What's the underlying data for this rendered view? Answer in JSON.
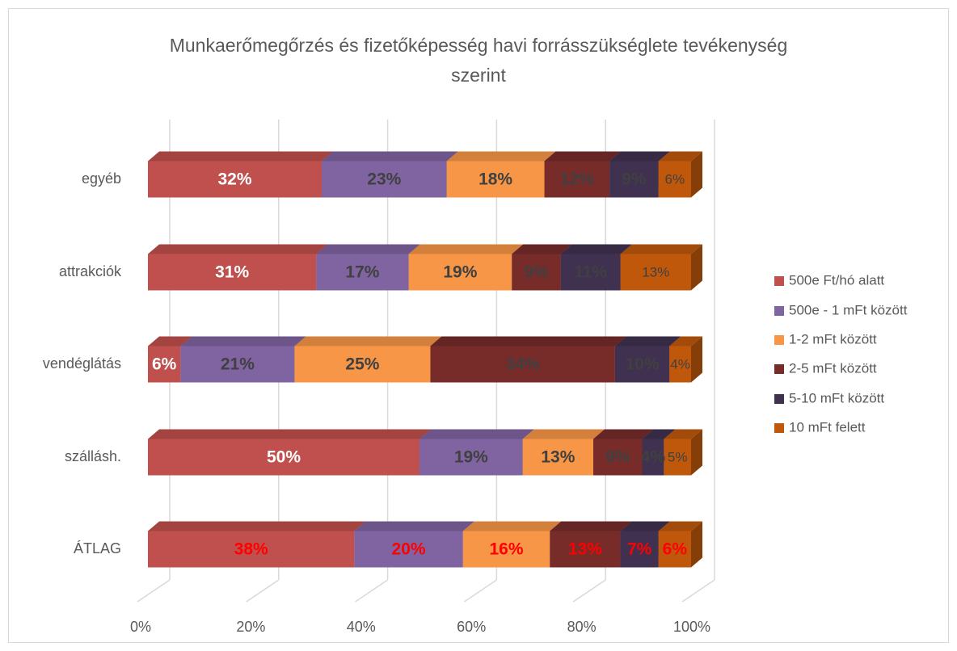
{
  "chart_data": {
    "type": "bar3d_stacked_horizontal",
    "title": "Munkaerőmegőrzés és fizetőképesség havi forrásszükséglete tevékenység szerint",
    "categories": [
      "egyéb",
      "attrakciók",
      "vendéglátás",
      "szállásh.",
      "ÁTLAG"
    ],
    "series": [
      {
        "name": "500e Ft/hó alatt",
        "color": "#c0504d",
        "values": [
          32,
          31,
          6,
          50,
          38
        ],
        "value_labels": [
          "32%",
          "31%",
          "6%",
          "50%",
          "38%"
        ]
      },
      {
        "name": "500e - 1 mFt között",
        "color": "#8064a2",
        "values": [
          23,
          17,
          21,
          19,
          20
        ],
        "value_labels": [
          "23%",
          "17%",
          "21%",
          "19%",
          "20%"
        ]
      },
      {
        "name": "1-2 mFt között",
        "color": "#f79646",
        "values": [
          18,
          19,
          25,
          13,
          16
        ],
        "value_labels": [
          "18%",
          "19%",
          "25%",
          "13%",
          "16%"
        ]
      },
      {
        "name": "2-5 mFt között",
        "color": "#772c2a",
        "values": [
          12,
          9,
          34,
          9,
          13
        ],
        "value_labels": [
          "12%",
          "9%",
          "34%",
          "9%",
          "13%"
        ]
      },
      {
        "name": "5-10 mFt között",
        "color": "#403151",
        "values": [
          9,
          11,
          10,
          4,
          7
        ],
        "value_labels": [
          "9%",
          "11%",
          "10%",
          "4%",
          "7%"
        ]
      },
      {
        "name": "10 mFt felett",
        "color": "#c0580c",
        "values": [
          6,
          13,
          4,
          5,
          6
        ],
        "value_labels": [
          "6%",
          "13%",
          "4%",
          "5%",
          "6%"
        ]
      }
    ],
    "xlim": [
      0,
      100
    ],
    "xticks": [
      {
        "value": 0,
        "label": "0%"
      },
      {
        "value": 20,
        "label": "20%"
      },
      {
        "value": 40,
        "label": "40%"
      },
      {
        "value": 60,
        "label": "60%"
      },
      {
        "value": 80,
        "label": "80%"
      },
      {
        "value": 100,
        "label": "100%"
      }
    ],
    "grid": true,
    "legend": "right"
  }
}
